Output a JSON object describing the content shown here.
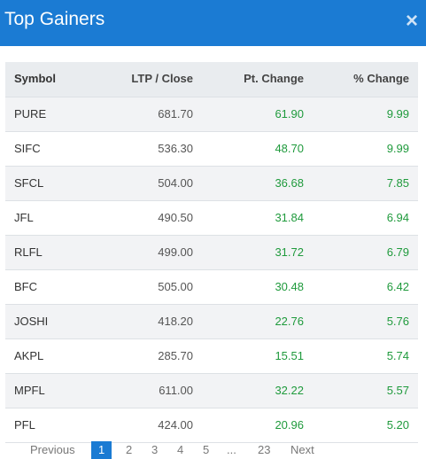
{
  "header": {
    "title": "Top Gainers",
    "close": "×"
  },
  "table": {
    "columns": [
      "Symbol",
      "LTP / Close",
      "Pt. Change",
      "% Change"
    ],
    "rows": [
      [
        "PURE",
        "681.70",
        "61.90",
        "9.99"
      ],
      [
        "SIFC",
        "536.30",
        "48.70",
        "9.99"
      ],
      [
        "SFCL",
        "504.00",
        "36.68",
        "7.85"
      ],
      [
        "JFL",
        "490.50",
        "31.84",
        "6.94"
      ],
      [
        "RLFL",
        "499.00",
        "31.72",
        "6.79"
      ],
      [
        "BFC",
        "505.00",
        "30.48",
        "6.42"
      ],
      [
        "JOSHI",
        "418.20",
        "22.76",
        "5.76"
      ],
      [
        "AKPL",
        "285.70",
        "15.51",
        "5.74"
      ],
      [
        "MPFL",
        "611.00",
        "32.22",
        "5.57"
      ],
      [
        "PFL",
        "424.00",
        "20.96",
        "5.20"
      ]
    ]
  },
  "pagination": [
    "Previous",
    "1",
    "2",
    "3",
    "4",
    "5",
    "...",
    "23",
    "Next"
  ]
}
